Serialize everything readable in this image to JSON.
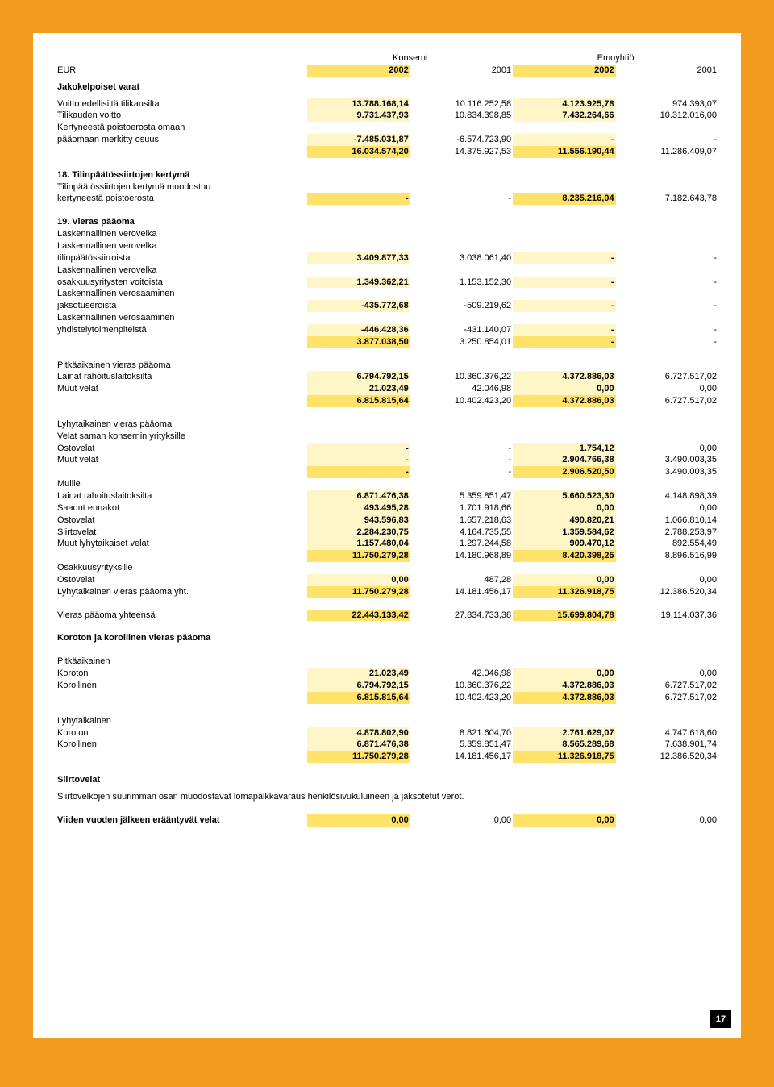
{
  "colors": {
    "page_bg": "#f29b1d",
    "content_bg": "#ffffff",
    "highlight_emph": "#ffe26a",
    "highlight_year": "#fff6c7",
    "pagenum_bg": "#000000",
    "pagenum_fg": "#ffffff",
    "text": "#000000"
  },
  "fontsize_pt": 8,
  "page_number": "17",
  "hdr": {
    "eur": "EUR",
    "konserni": "Konserni",
    "emoyhtio": "Emoyhtiö",
    "y2002": "2002",
    "y2001": "2001"
  },
  "s_jakokelpoiset": "Jakokelpoiset varat",
  "r_voitto_ed": {
    "l": "Voitto edellisiltä tilikausilta",
    "v": [
      "13.788.168,14",
      "10.116.252,58",
      "4.123.925,78",
      "974.393,07"
    ]
  },
  "r_tilikauden": {
    "l": "Tilikauden voitto",
    "v": [
      "9.731.437,93",
      "10.834.398,85",
      "7.432.264,66",
      "10.312.016,00"
    ]
  },
  "r_kert1": "Kertyneestä poistoerosta omaan",
  "r_kert2": {
    "l": "pääomaan merkitty osuus",
    "v": [
      "-7.485.031,87",
      "-6.574.723,90",
      "-",
      "-"
    ]
  },
  "r_kert_sum": {
    "v": [
      "16.034.574,20",
      "14.375.927,53",
      "11.556.190,44",
      "11.286.409,07"
    ]
  },
  "s18": "18. Tilinpäätössiirtojen kertymä",
  "r_18a": "Tilinpäätössiirtojen kertymä muodostuu",
  "r_18b": {
    "l": "kertyneestä poistoerosta",
    "v": [
      "-",
      "-",
      "8.235.216,04",
      "7.182.643,78"
    ]
  },
  "s19": "19. Vieras pääoma",
  "r_19lv": "Laskennallinen verovelka",
  "r_19lv2": "Laskennallinen verovelka",
  "r_19_tilin": {
    "l": "tilinpäätössiirroista",
    "v": [
      "3.409.877,33",
      "3.038.061,40",
      "-",
      "-"
    ]
  },
  "r_19lv3": "Laskennallinen verovelka",
  "r_19_osak": {
    "l": "osakkuusyritysten voitoista",
    "v": [
      "1.349.362,21",
      "1.153.152,30",
      "-",
      "-"
    ]
  },
  "r_19ls1": "Laskennallinen verosaaminen",
  "r_19_jakso": {
    "l": "jaksotuseroista",
    "v": [
      "-435.772,68",
      "-509.219,62",
      "-",
      "-"
    ]
  },
  "r_19ls2": "Laskennallinen verosaaminen",
  "r_19_yhd": {
    "l": "yhdistelytoimenpiteistä",
    "v": [
      "-446.428,36",
      "-431.140,07",
      "-",
      "-"
    ]
  },
  "r_19_sum1": {
    "v": [
      "3.877.038,50",
      "3.250.854,01",
      "-",
      "-"
    ]
  },
  "s_pitka": "Pitkäaikainen vieras pääoma",
  "r_lainat_pitka": {
    "l": "Lainat rahoituslaitoksilta",
    "v": [
      "6.794.792,15",
      "10.360.376,22",
      "4.372.886,03",
      "6.727.517,02"
    ]
  },
  "r_muut_pitka": {
    "l": "Muut velat",
    "v": [
      "21.023,49",
      "42.046,98",
      "0,00",
      "0,00"
    ]
  },
  "r_pitka_sum": {
    "v": [
      "6.815.815,64",
      "10.402.423,20",
      "4.372.886,03",
      "6.727.517,02"
    ]
  },
  "s_lyhyt": "Lyhytaikainen vieras pääoma",
  "r_velat_saman": "Velat saman konsernin yrityksille",
  "r_osto1": {
    "l": "Ostovelat",
    "v": [
      "-",
      "-",
      "1.754,12",
      "0,00"
    ]
  },
  "r_muut1": {
    "l": "Muut velat",
    "v": [
      "-",
      "-",
      "2.904.766,38",
      "3.490.003,35"
    ]
  },
  "r_lyhyt_sub": {
    "v": [
      "-",
      "-",
      "2.906.520,50",
      "3.490.003,35"
    ]
  },
  "r_muille": "Muille",
  "r_lainat2": {
    "l": "Lainat rahoituslaitoksilta",
    "v": [
      "6.871.476,38",
      "5.359.851,47",
      "5.660.523,30",
      "4.148.898,39"
    ]
  },
  "r_saadut": {
    "l": "Saadut ennakot",
    "v": [
      "493.495,28",
      "1.701.918,66",
      "0,00",
      "0,00"
    ]
  },
  "r_osto2": {
    "l": "Ostovelat",
    "v": [
      "943.596,83",
      "1.657.218,63",
      "490.820,21",
      "1.066.810,14"
    ]
  },
  "r_siirto": {
    "l": "Siirtovelat",
    "v": [
      "2.284.230,75",
      "4.164.735,55",
      "1.359.584,62",
      "2.788.253,97"
    ]
  },
  "r_muut_ly": {
    "l": "Muut lyhytaikaiset velat",
    "v": [
      "1.157.480,04",
      "1.297.244,58",
      "909.470,12",
      "892.554,49"
    ]
  },
  "r_muille_sum": {
    "v": [
      "11.750.279,28",
      "14.180.968,89",
      "8.420.398,25",
      "8.896.516,99"
    ]
  },
  "r_osakyr": "Osakkuusyrityksille",
  "r_osto3": {
    "l": "Ostovelat",
    "v": [
      "0,00",
      "487,28",
      "0,00",
      "0,00"
    ]
  },
  "r_lyhyt_yht": {
    "l": "Lyhytaikainen vieras pääoma yht.",
    "v": [
      "11.750.279,28",
      "14.181.456,17",
      "11.326.918,75",
      "12.386.520,34"
    ]
  },
  "r_vp_yht": {
    "l": "Vieras pääoma yhteensä",
    "v": [
      "22.443.133,42",
      "27.834.733,38",
      "15.699.804,78",
      "19.114.037,36"
    ]
  },
  "s_koroton": "Koroton ja korollinen vieras pääoma",
  "s_pitka2": "Pitkäaikainen",
  "r_koroton1": {
    "l": "Koroton",
    "v": [
      "21.023,49",
      "42.046,98",
      "0,00",
      "0,00"
    ]
  },
  "r_korollinen1": {
    "l": "Korollinen",
    "v": [
      "6.794.792,15",
      "10.360.376,22",
      "4.372.886,03",
      "6.727.517,02"
    ]
  },
  "r_pitka2_sum": {
    "v": [
      "6.815.815,64",
      "10.402.423,20",
      "4.372.886,03",
      "6.727.517,02"
    ]
  },
  "s_lyhyt2": "Lyhytaikainen",
  "r_koroton2": {
    "l": "Koroton",
    "v": [
      "4.878.802,90",
      "8.821.604,70",
      "2.761.629,07",
      "4.747.618,60"
    ]
  },
  "r_korollinen2": {
    "l": "Korollinen",
    "v": [
      "6.871.476,38",
      "5.359.851,47",
      "8.565.289,68",
      "7.638.901,74"
    ]
  },
  "r_lyhyt2_sum": {
    "v": [
      "11.750.279,28",
      "14.181.456,17",
      "11.326.918,75",
      "12.386.520,34"
    ]
  },
  "s_siirtovelat": "Siirtovelat",
  "note_siirto": "Siirtovelkojen suurimman osan muodostavat lomapalkkavaraus henkilösivukuluineen ja jaksotetut verot.",
  "r_viiden": {
    "l": "Viiden vuoden jälkeen erääntyvät velat",
    "v": [
      "0,00",
      "0,00",
      "0,00",
      "0,00"
    ]
  }
}
